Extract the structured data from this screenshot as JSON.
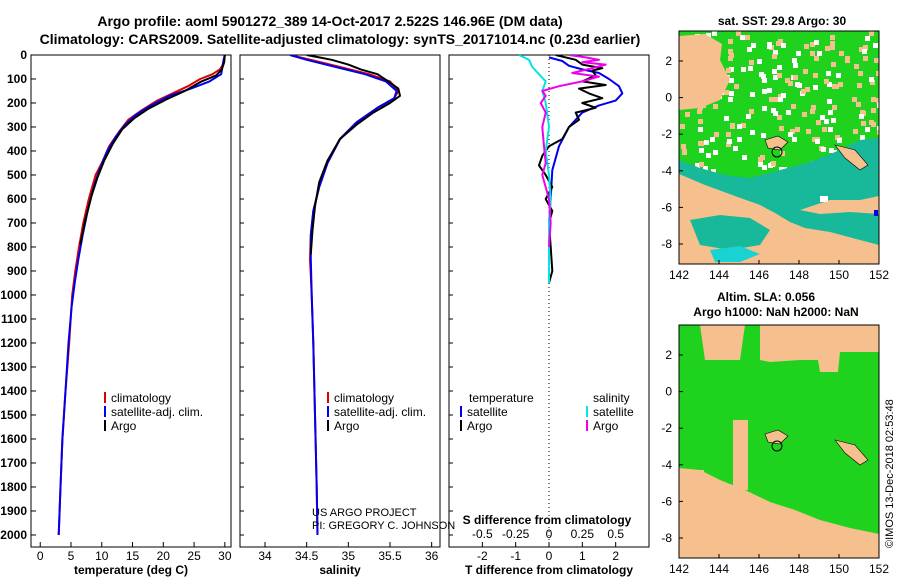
{
  "header": {
    "title_line1": "Argo profile: aoml 5901272_389 14-Oct-2017 2.522S 146.96E (DM data)",
    "title_line2": "Climatology: CARS2009. Satellite-adjusted climatology: synTS_20171014.nc (0.23d earlier)"
  },
  "colors": {
    "climatology": "#dd0000",
    "satellite": "#0000ee",
    "argo": "#000000",
    "sal_sat": "#00e5e5",
    "sal_argo": "#ee00ee",
    "land": "#f5c08d",
    "green": "#1ed21e",
    "teal": "#18b99a",
    "cyan": "#19d2d2"
  },
  "depth_axis": {
    "ylim": [
      0,
      2050
    ],
    "ticks": [
      "0",
      "100",
      "200",
      "300",
      "400",
      "500",
      "600",
      "700",
      "800",
      "900",
      "1000",
      "1100",
      "1200",
      "1300",
      "1400",
      "1500",
      "1600",
      "1700",
      "1800",
      "1900",
      "2000"
    ]
  },
  "chart_data": [
    {
      "type": "line",
      "id": "temperature",
      "xlabel": "temperature (deg C)",
      "xlim": [
        -1.5,
        31
      ],
      "xticks": [
        "0",
        "5",
        "10",
        "15",
        "20",
        "25",
        "30"
      ],
      "legend": [
        "climatology",
        "satellite-adj. clim.",
        "Argo"
      ],
      "series": [
        {
          "name": "climatology",
          "color": "#dd0000",
          "points": [
            [
              30,
              0
            ],
            [
              29.9,
              20
            ],
            [
              29.7,
              40
            ],
            [
              29.2,
              60
            ],
            [
              28.0,
              80
            ],
            [
              26.0,
              100
            ],
            [
              24.0,
              130
            ],
            [
              21.5,
              160
            ],
            [
              19.0,
              190
            ],
            [
              16.5,
              230
            ],
            [
              14.3,
              270
            ],
            [
              12.8,
              320
            ],
            [
              11.2,
              380
            ],
            [
              10.0,
              450
            ],
            [
              9.0,
              500
            ],
            [
              7.9,
              600
            ],
            [
              7.0,
              700
            ],
            [
              6.3,
              800
            ],
            [
              5.7,
              900
            ],
            [
              5.2,
              1000
            ],
            [
              4.7,
              1200
            ],
            [
              4.1,
              1400
            ],
            [
              3.6,
              1600
            ],
            [
              3.3,
              1800
            ],
            [
              3.0,
              2000
            ]
          ]
        },
        {
          "name": "satellite-adj. clim.",
          "color": "#0000ee",
          "points": [
            [
              30,
              0
            ],
            [
              29.8,
              20
            ],
            [
              29.6,
              50
            ],
            [
              29.4,
              80
            ],
            [
              27.5,
              110
            ],
            [
              24.5,
              140
            ],
            [
              21.0,
              170
            ],
            [
              18.0,
              210
            ],
            [
              15.5,
              250
            ],
            [
              13.8,
              290
            ],
            [
              12.3,
              340
            ],
            [
              10.9,
              400
            ],
            [
              9.6,
              480
            ],
            [
              8.7,
              550
            ],
            [
              7.7,
              650
            ],
            [
              6.9,
              750
            ],
            [
              6.2,
              850
            ],
            [
              5.6,
              950
            ],
            [
              5.1,
              1050
            ],
            [
              4.6,
              1200
            ],
            [
              4.1,
              1400
            ],
            [
              3.6,
              1600
            ],
            [
              3.3,
              1800
            ],
            [
              3.0,
              2000
            ]
          ]
        },
        {
          "name": "Argo",
          "color": "#000000",
          "points": [
            [
              30,
              0
            ],
            [
              29.9,
              30
            ],
            [
              29.5,
              60
            ],
            [
              28.6,
              85
            ],
            [
              26.2,
              110
            ],
            [
              23.5,
              150
            ],
            [
              20.5,
              185
            ],
            [
              17.5,
              225
            ],
            [
              15.2,
              265
            ],
            [
              13.3,
              310
            ],
            [
              11.8,
              370
            ],
            [
              10.4,
              440
            ],
            [
              9.3,
              510
            ],
            [
              8.3,
              590
            ],
            [
              7.3,
              690
            ],
            [
              6.5,
              790
            ]
          ]
        }
      ]
    },
    {
      "type": "line",
      "id": "salinity",
      "xlabel": "salinity",
      "xlim": [
        33.7,
        36.1
      ],
      "xticks": [
        "34",
        "34.5",
        "35",
        "35.5",
        "36"
      ],
      "legend": [
        "climatology",
        "satellite-adj. clim.",
        "Argo"
      ],
      "footer": [
        "US ARGO PROJECT",
        "PI: GREGORY C. JOHNSON"
      ],
      "series": [
        {
          "name": "climatology",
          "color": "#dd0000",
          "points": [
            [
              34.3,
              0
            ],
            [
              34.55,
              20
            ],
            [
              34.9,
              50
            ],
            [
              35.25,
              80
            ],
            [
              35.5,
              110
            ],
            [
              35.6,
              150
            ],
            [
              35.55,
              180
            ],
            [
              35.35,
              220
            ],
            [
              35.1,
              280
            ],
            [
              34.9,
              350
            ],
            [
              34.75,
              450
            ],
            [
              34.65,
              550
            ],
            [
              34.58,
              650
            ],
            [
              34.55,
              750
            ],
            [
              34.54,
              850
            ],
            [
              34.56,
              1000
            ],
            [
              34.58,
              1200
            ],
            [
              34.6,
              1500
            ],
            [
              34.62,
              1800
            ],
            [
              34.63,
              2000
            ]
          ]
        },
        {
          "name": "satellite-adj. clim.",
          "color": "#0000ee",
          "points": [
            [
              34.3,
              0
            ],
            [
              34.5,
              20
            ],
            [
              34.85,
              50
            ],
            [
              35.2,
              80
            ],
            [
              35.45,
              110
            ],
            [
              35.58,
              150
            ],
            [
              35.55,
              180
            ],
            [
              35.35,
              220
            ],
            [
              35.1,
              280
            ],
            [
              34.9,
              350
            ],
            [
              34.75,
              450
            ],
            [
              34.65,
              550
            ],
            [
              34.58,
              650
            ],
            [
              34.55,
              750
            ],
            [
              34.55,
              850
            ],
            [
              34.56,
              1000
            ],
            [
              34.58,
              1200
            ],
            [
              34.6,
              1500
            ],
            [
              34.62,
              1800
            ],
            [
              34.63,
              2000
            ]
          ]
        },
        {
          "name": "Argo",
          "color": "#000000",
          "points": [
            [
              34.5,
              0
            ],
            [
              34.65,
              10
            ],
            [
              34.8,
              20
            ],
            [
              35.0,
              40
            ],
            [
              35.15,
              60
            ],
            [
              35.35,
              80
            ],
            [
              35.48,
              110
            ],
            [
              35.6,
              140
            ],
            [
              35.62,
              170
            ],
            [
              35.5,
              200
            ],
            [
              35.3,
              240
            ],
            [
              35.1,
              290
            ],
            [
              34.9,
              350
            ],
            [
              34.75,
              440
            ],
            [
              34.65,
              530
            ],
            [
              34.6,
              630
            ],
            [
              34.57,
              730
            ],
            [
              34.55,
              830
            ]
          ]
        }
      ]
    },
    {
      "type": "line",
      "id": "difference",
      "xlabel": "T difference from climatology",
      "x2label": "S difference from climatology",
      "xlim": [
        -3,
        3
      ],
      "xticks": [
        "-2",
        "-1",
        "0",
        "1",
        "2"
      ],
      "x2ticks": [
        "-0.5",
        "-0.25",
        "0",
        "0.25",
        "0.5"
      ],
      "legend_left": [
        "temperature",
        "satellite",
        "Argo"
      ],
      "legend_right": [
        "salinity",
        "satellite",
        "Argo"
      ],
      "series": [
        {
          "name": "temperature satellite",
          "color": "#0000ee",
          "points": [
            [
              0,
              10
            ],
            [
              0.4,
              25
            ],
            [
              0.6,
              45
            ],
            [
              1.0,
              60
            ],
            [
              1.5,
              75
            ],
            [
              1.8,
              100
            ],
            [
              2.1,
              130
            ],
            [
              2.2,
              160
            ],
            [
              2.0,
              190
            ],
            [
              1.5,
              210
            ],
            [
              1.0,
              240
            ],
            [
              0.6,
              300
            ],
            [
              0.3,
              380
            ],
            [
              0.1,
              480
            ],
            [
              0.05,
              600
            ],
            [
              0,
              700
            ],
            [
              0,
              800
            ]
          ]
        },
        {
          "name": "temperature Argo",
          "color": "#000000",
          "points": [
            [
              0.2,
              0
            ],
            [
              0.8,
              20
            ],
            [
              1.0,
              40
            ],
            [
              1.6,
              55
            ],
            [
              1.3,
              65
            ],
            [
              1.4,
              85
            ],
            [
              1.0,
              110
            ],
            [
              1.7,
              125
            ],
            [
              0.9,
              140
            ],
            [
              1.2,
              160
            ],
            [
              1.6,
              180
            ],
            [
              1.0,
              200
            ],
            [
              1.4,
              220
            ],
            [
              0.8,
              240
            ],
            [
              0.9,
              270
            ],
            [
              0.6,
              300
            ],
            [
              0.4,
              350
            ],
            [
              0.0,
              380
            ],
            [
              -0.2,
              420
            ],
            [
              -0.3,
              460
            ],
            [
              -0.1,
              500
            ],
            [
              0.1,
              550
            ],
            [
              -0.1,
              600
            ],
            [
              0.1,
              650
            ],
            [
              0,
              700
            ],
            [
              0.05,
              800
            ],
            [
              0.1,
              900
            ],
            [
              0,
              950
            ]
          ]
        },
        {
          "name": "salinity satellite",
          "color": "#00e5e5",
          "points": [
            [
              -0.9,
              0
            ],
            [
              -0.6,
              20
            ],
            [
              -0.5,
              50
            ],
            [
              -0.3,
              80
            ],
            [
              -0.1,
              110
            ],
            [
              -0.2,
              150
            ],
            [
              -0.1,
              200
            ],
            [
              0,
              300
            ],
            [
              -0.1,
              400
            ],
            [
              0,
              500
            ],
            [
              0.05,
              600
            ],
            [
              0,
              700
            ],
            [
              0,
              800
            ],
            [
              0,
              900
            ],
            [
              0,
              950
            ]
          ]
        },
        {
          "name": "salinity Argo",
          "color": "#ee00ee",
          "points": [
            [
              0.6,
              0
            ],
            [
              1.1,
              10
            ],
            [
              1.5,
              20
            ],
            [
              1.0,
              30
            ],
            [
              1.7,
              40
            ],
            [
              1.3,
              55
            ],
            [
              0.7,
              75
            ],
            [
              1.5,
              90
            ],
            [
              1.0,
              110
            ],
            [
              0.3,
              130
            ],
            [
              -0.2,
              150
            ],
            [
              -0.1,
              170
            ],
            [
              -0.25,
              200
            ],
            [
              -0.1,
              240
            ],
            [
              -0.2,
              300
            ],
            [
              -0.15,
              380
            ],
            [
              -0.1,
              450
            ],
            [
              -0.2,
              500
            ],
            [
              0,
              600
            ],
            [
              0.05,
              700
            ],
            [
              0,
              800
            ]
          ]
        }
      ]
    }
  ],
  "maps": {
    "top": {
      "title": "sat. SST: 29.8 Argo: 30",
      "yticks": [
        "2",
        "0",
        "-2",
        "-4",
        "-6",
        "-8"
      ],
      "xticks": [
        "142",
        "144",
        "146",
        "148",
        "150",
        "152"
      ]
    },
    "bottom": {
      "title1": "Altim. SLA: 0.056",
      "title2": "Argo h1000: NaN h2000: NaN",
      "yticks": [
        "2",
        "0",
        "-2",
        "-4",
        "-6",
        "-8"
      ],
      "xticks": [
        "142",
        "144",
        "146",
        "148",
        "150",
        "152"
      ]
    }
  },
  "watermark": "©IMOS 13-Dec-2018 02:53:48"
}
